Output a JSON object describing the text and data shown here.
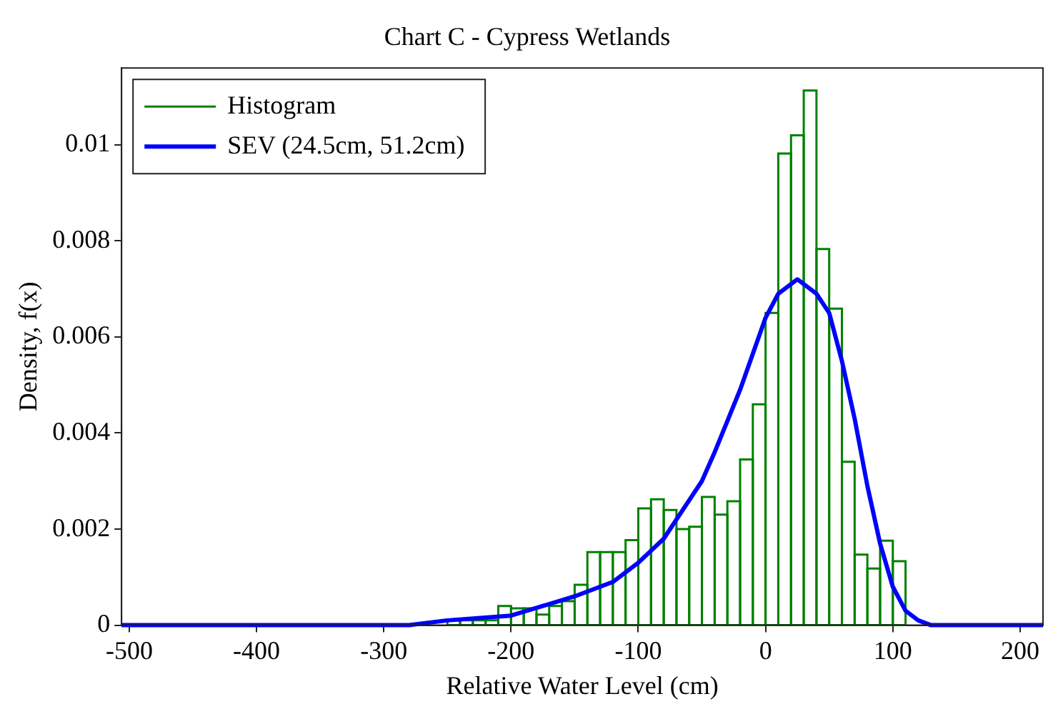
{
  "chart_data": {
    "type": "histogram",
    "title": "Chart C - Cypress Wetlands",
    "xlabel": "Relative Water Level (cm)",
    "ylabel": "Density, f(x)",
    "xlim": [
      -506,
      218
    ],
    "ylim": [
      0,
      0.0116
    ],
    "xticks": [
      -500,
      -400,
      -300,
      -200,
      -100,
      0,
      100,
      200
    ],
    "yticks": [
      0,
      0.002,
      0.004,
      0.006,
      0.008,
      0.01
    ],
    "legend": "top left",
    "grid": false,
    "series": [
      {
        "name": "Histogram",
        "color": "#008000",
        "bins": [
          -250,
          -240,
          -230,
          -220,
          -210,
          -200,
          -190,
          -180,
          -170,
          -160,
          -150,
          -140,
          -130,
          -120,
          -110,
          -100,
          -90,
          -80,
          -70,
          -60,
          -50,
          -40,
          -30,
          -20,
          -10,
          0,
          10,
          20,
          30,
          40,
          50,
          60,
          70,
          80,
          90,
          100,
          110
        ],
        "values": [
          0.0001,
          0.0001,
          0.0001,
          0.0001,
          0.0004,
          0.00035,
          0.00035,
          0.00022,
          0.0004,
          0.0005,
          0.00084,
          0.00152,
          0.00152,
          0.00152,
          0.00177,
          0.00243,
          0.00262,
          0.0024,
          0.002,
          0.00205,
          0.00267,
          0.0023,
          0.00258,
          0.00345,
          0.0046,
          0.0065,
          0.00982,
          0.0102,
          0.01113,
          0.00783,
          0.00659,
          0.0034,
          0.00147,
          0.00118,
          0.00176,
          0.00133
        ]
      },
      {
        "type": "line",
        "name": "SEV (24.5cm, 51.2cm)",
        "color": "#0000ff",
        "x": [
          -506,
          -300,
          -280,
          -250,
          -200,
          -150,
          -120,
          -100,
          -80,
          -60,
          -50,
          -40,
          -20,
          0,
          10,
          25,
          40,
          50,
          60,
          70,
          80,
          90,
          100,
          110,
          120,
          130,
          218
        ],
        "values": [
          0,
          0,
          0,
          0.0001,
          0.0002,
          0.0006,
          0.0009,
          0.0013,
          0.0018,
          0.0026,
          0.003,
          0.0036,
          0.0049,
          0.0064,
          0.0069,
          0.0072,
          0.0069,
          0.0065,
          0.0055,
          0.0043,
          0.0029,
          0.0017,
          0.0008,
          0.0003,
          0.0001,
          0,
          0
        ]
      }
    ]
  }
}
